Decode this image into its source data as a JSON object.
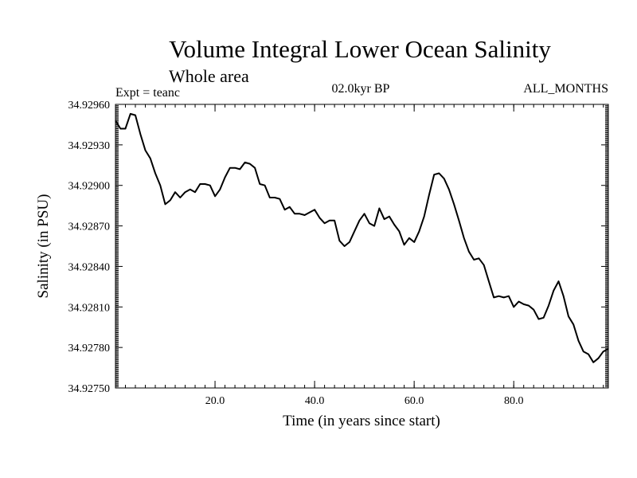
{
  "chart_data": {
    "type": "line",
    "title": "Volume Integral Lower Ocean Salinity",
    "subtitle": "Whole area",
    "experiment": "Expt = teanc",
    "period": "02.0kyr BP",
    "months": "ALL_MONTHS",
    "xlabel": "Time (in years since start)",
    "ylabel": "Salinity (in PSU)",
    "xlim": [
      0,
      99
    ],
    "ylim": [
      34.9275,
      34.9296
    ],
    "xticks": [
      {
        "value": 20,
        "label": "20.0"
      },
      {
        "value": 40,
        "label": "40.0"
      },
      {
        "value": 60,
        "label": "60.0"
      },
      {
        "value": 80,
        "label": "80.0"
      }
    ],
    "yticks": [
      {
        "value": 34.9275,
        "label": "34.92750"
      },
      {
        "value": 34.9278,
        "label": "34.92780"
      },
      {
        "value": 34.9281,
        "label": "34.92810"
      },
      {
        "value": 34.9284,
        "label": "34.92840"
      },
      {
        "value": 34.9287,
        "label": "34.92870"
      },
      {
        "value": 34.929,
        "label": "34.92900"
      },
      {
        "value": 34.9293,
        "label": "34.92930"
      },
      {
        "value": 34.9296,
        "label": "34.92960"
      }
    ],
    "series": [
      {
        "name": "salinity",
        "x": [
          0,
          1,
          2,
          3,
          4,
          5,
          6,
          7,
          8,
          9,
          10,
          11,
          12,
          13,
          14,
          15,
          16,
          17,
          18,
          19,
          20,
          21,
          22,
          23,
          24,
          25,
          26,
          27,
          28,
          29,
          30,
          31,
          32,
          33,
          34,
          35,
          36,
          37,
          38,
          39,
          40,
          41,
          42,
          43,
          44,
          45,
          46,
          47,
          48,
          49,
          50,
          51,
          52,
          53,
          54,
          55,
          56,
          57,
          58,
          59,
          60,
          61,
          62,
          63,
          64,
          65,
          66,
          67,
          68,
          69,
          70,
          71,
          72,
          73,
          74,
          75,
          76,
          77,
          78,
          79,
          80,
          81,
          82,
          83,
          84,
          85,
          86,
          87,
          88,
          89,
          90,
          91,
          92,
          93,
          94,
          95,
          96,
          97,
          98,
          99
        ],
        "values": [
          34.92948,
          34.92942,
          34.92942,
          34.92953,
          34.92952,
          34.92938,
          34.92926,
          34.9292,
          34.92909,
          34.929,
          34.92886,
          34.92889,
          34.92895,
          34.92891,
          34.92895,
          34.92897,
          34.92895,
          34.92901,
          34.92901,
          34.929,
          34.92892,
          34.92897,
          34.92906,
          34.92913,
          34.92913,
          34.92912,
          34.92917,
          34.92916,
          34.92913,
          34.92901,
          34.929,
          34.92891,
          34.92891,
          34.9289,
          34.92882,
          34.92884,
          34.92879,
          34.92879,
          34.92878,
          34.9288,
          34.92882,
          34.92876,
          34.92872,
          34.92874,
          34.92874,
          34.92859,
          34.92855,
          34.92858,
          34.92866,
          34.92874,
          34.92879,
          34.92872,
          34.9287,
          34.92883,
          34.92875,
          34.92877,
          34.92871,
          34.92866,
          34.92856,
          34.92861,
          34.92858,
          34.92866,
          34.92877,
          34.92893,
          34.92908,
          34.92909,
          34.92905,
          34.92897,
          34.92886,
          34.92874,
          34.92861,
          34.92851,
          34.92845,
          34.92846,
          34.92841,
          34.92829,
          34.92817,
          34.92818,
          34.92817,
          34.92818,
          34.9281,
          34.92814,
          34.92812,
          34.92811,
          34.92808,
          34.92801,
          34.92802,
          34.92811,
          34.92822,
          34.92829,
          34.92818,
          34.92803,
          34.92797,
          34.92785,
          34.92777,
          34.92775,
          34.92769,
          34.92772,
          34.92777,
          34.92779
        ]
      }
    ]
  }
}
